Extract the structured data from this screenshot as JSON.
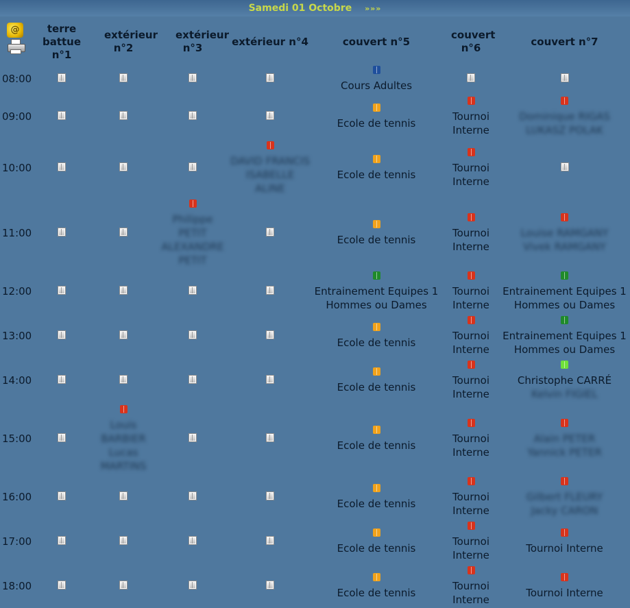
{
  "header": {
    "date": "Samedi 01 Octobre",
    "next": "»»»"
  },
  "icons": {
    "logo": "@",
    "print": "printer-icon"
  },
  "colors": {
    "background": "#4f789e",
    "free": "#d9d9d9",
    "red": "#d8331c",
    "orange": "#f0a21c",
    "blue": "#1f4f9c",
    "darkgreen": "#1f8a2a",
    "lightgreen": "#6fe03a"
  },
  "courts": [
    "terre battue n°1",
    "extérieur n°2",
    "extérieur n°3",
    "extérieur n°4",
    "couvert n°5",
    "couvert n°6",
    "couvert n°7"
  ],
  "rows": [
    {
      "time": "08:00",
      "cells": [
        {
          "type": "free"
        },
        {
          "type": "free"
        },
        {
          "type": "free"
        },
        {
          "type": "free"
        },
        {
          "type": "booking",
          "color": "blue",
          "lines": [
            "Cours Adultes"
          ]
        },
        {
          "type": "free"
        },
        {
          "type": "free"
        }
      ]
    },
    {
      "time": "09:00",
      "cells": [
        {
          "type": "free"
        },
        {
          "type": "free"
        },
        {
          "type": "free"
        },
        {
          "type": "free"
        },
        {
          "type": "booking",
          "color": "orange",
          "lines": [
            "Ecole de tennis"
          ]
        },
        {
          "type": "booking",
          "color": "red",
          "lines": [
            "Tournoi",
            "Interne"
          ]
        },
        {
          "type": "booking",
          "color": "red",
          "blur": true,
          "lines": [
            "Dominique RIGAS",
            "LUKASZ POLAK"
          ]
        }
      ]
    },
    {
      "time": "10:00",
      "cells": [
        {
          "type": "free"
        },
        {
          "type": "free"
        },
        {
          "type": "free"
        },
        {
          "type": "booking",
          "color": "red",
          "blur": true,
          "lines": [
            "DAVID FRANCIS",
            "ISABELLE",
            "ALINE"
          ]
        },
        {
          "type": "booking",
          "color": "orange",
          "lines": [
            "Ecole de tennis"
          ]
        },
        {
          "type": "booking",
          "color": "red",
          "lines": [
            "Tournoi",
            "Interne"
          ]
        },
        {
          "type": "free"
        }
      ]
    },
    {
      "time": "11:00",
      "cells": [
        {
          "type": "free"
        },
        {
          "type": "free"
        },
        {
          "type": "booking",
          "color": "red",
          "blur": true,
          "lines": [
            "Philippe",
            "PETIT",
            "ALEXANDRE",
            "PETIT"
          ]
        },
        {
          "type": "free"
        },
        {
          "type": "booking",
          "color": "orange",
          "lines": [
            "Ecole de tennis"
          ]
        },
        {
          "type": "booking",
          "color": "red",
          "lines": [
            "Tournoi",
            "Interne"
          ]
        },
        {
          "type": "booking",
          "color": "red",
          "blur": true,
          "lines": [
            "Louise RAMGANY",
            "Vivek RAMGANY"
          ]
        }
      ]
    },
    {
      "time": "12:00",
      "cells": [
        {
          "type": "free"
        },
        {
          "type": "free"
        },
        {
          "type": "free"
        },
        {
          "type": "free"
        },
        {
          "type": "booking",
          "color": "darkgreen",
          "lines": [
            "Entrainement Equipes 1",
            "Hommes ou Dames"
          ]
        },
        {
          "type": "booking",
          "color": "red",
          "lines": [
            "Tournoi",
            "Interne"
          ]
        },
        {
          "type": "booking",
          "color": "darkgreen",
          "lines": [
            "Entrainement Equipes 1",
            "Hommes ou Dames"
          ]
        }
      ]
    },
    {
      "time": "13:00",
      "cells": [
        {
          "type": "free"
        },
        {
          "type": "free"
        },
        {
          "type": "free"
        },
        {
          "type": "free"
        },
        {
          "type": "booking",
          "color": "orange",
          "lines": [
            "Ecole de tennis"
          ]
        },
        {
          "type": "booking",
          "color": "red",
          "lines": [
            "Tournoi",
            "Interne"
          ]
        },
        {
          "type": "booking",
          "color": "darkgreen",
          "lines": [
            "Entrainement Equipes 1",
            "Hommes ou Dames"
          ]
        }
      ]
    },
    {
      "time": "14:00",
      "cells": [
        {
          "type": "free"
        },
        {
          "type": "free"
        },
        {
          "type": "free"
        },
        {
          "type": "free"
        },
        {
          "type": "booking",
          "color": "orange",
          "lines": [
            "Ecole de tennis"
          ]
        },
        {
          "type": "booking",
          "color": "red",
          "lines": [
            "Tournoi",
            "Interne"
          ]
        },
        {
          "type": "booking",
          "color": "lightgreen",
          "lines": [
            "Christophe CARRÉ",
            "Kelvin FIGIEL"
          ],
          "blurLines": [
            1
          ]
        }
      ]
    },
    {
      "time": "15:00",
      "cells": [
        {
          "type": "free"
        },
        {
          "type": "booking",
          "color": "red",
          "blur": true,
          "lines": [
            "Louis",
            "BARBIER",
            "Lucas",
            "MARTINS"
          ]
        },
        {
          "type": "free"
        },
        {
          "type": "free"
        },
        {
          "type": "booking",
          "color": "orange",
          "lines": [
            "Ecole de tennis"
          ]
        },
        {
          "type": "booking",
          "color": "red",
          "lines": [
            "Tournoi",
            "Interne"
          ]
        },
        {
          "type": "booking",
          "color": "red",
          "blur": true,
          "lines": [
            "Alain PETER",
            "Yannick PETER"
          ]
        }
      ]
    },
    {
      "time": "16:00",
      "cells": [
        {
          "type": "free"
        },
        {
          "type": "free"
        },
        {
          "type": "free"
        },
        {
          "type": "free"
        },
        {
          "type": "booking",
          "color": "orange",
          "lines": [
            "Ecole de tennis"
          ]
        },
        {
          "type": "booking",
          "color": "red",
          "lines": [
            "Tournoi",
            "Interne"
          ]
        },
        {
          "type": "booking",
          "color": "red",
          "blur": true,
          "lines": [
            "Gilbert FLEURY",
            "Jacky CARON"
          ]
        }
      ]
    },
    {
      "time": "17:00",
      "cells": [
        {
          "type": "free"
        },
        {
          "type": "free"
        },
        {
          "type": "free"
        },
        {
          "type": "free"
        },
        {
          "type": "booking",
          "color": "orange",
          "lines": [
            "Ecole de tennis"
          ]
        },
        {
          "type": "booking",
          "color": "red",
          "lines": [
            "Tournoi",
            "Interne"
          ]
        },
        {
          "type": "booking",
          "color": "red",
          "lines": [
            "Tournoi Interne"
          ]
        }
      ]
    },
    {
      "time": "18:00",
      "cells": [
        {
          "type": "free"
        },
        {
          "type": "free"
        },
        {
          "type": "free"
        },
        {
          "type": "free"
        },
        {
          "type": "booking",
          "color": "orange",
          "lines": [
            "Ecole de tennis"
          ]
        },
        {
          "type": "booking",
          "color": "red",
          "lines": [
            "Tournoi",
            "Interne"
          ]
        },
        {
          "type": "booking",
          "color": "red",
          "lines": [
            "Tournoi Interne"
          ]
        }
      ]
    }
  ]
}
